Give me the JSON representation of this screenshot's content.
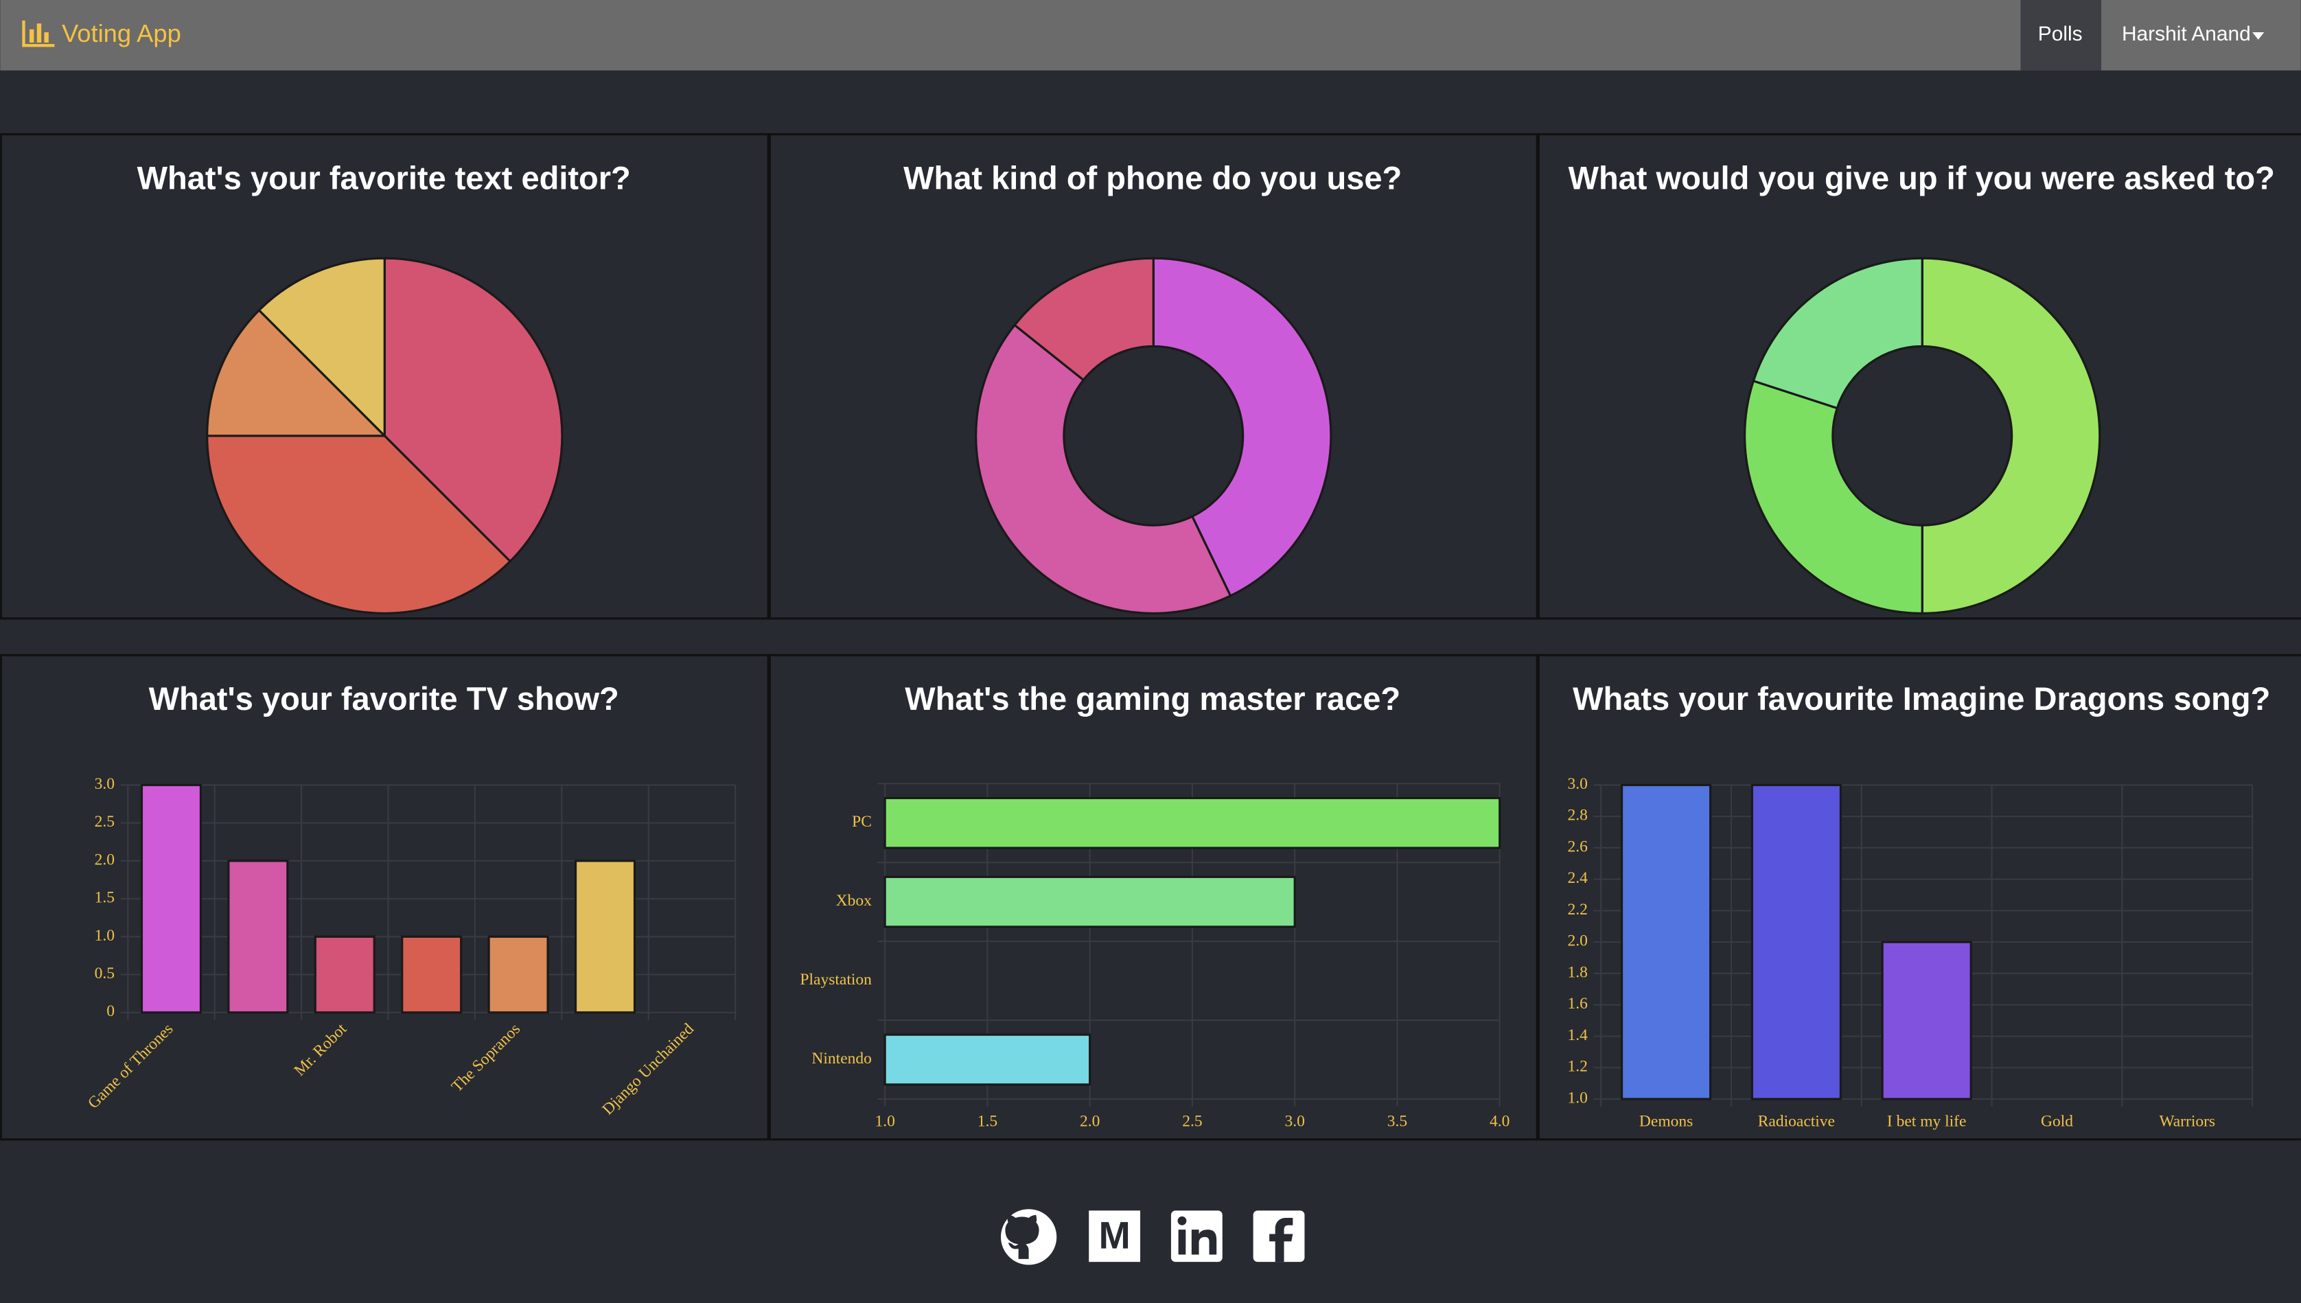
{
  "nav": {
    "brand": "Voting App",
    "items": [
      "Polls",
      "Harshit Anand"
    ]
  },
  "chart_data": [
    {
      "type": "pie",
      "title": "What's your favorite text editor?",
      "values": [
        3,
        3,
        1,
        1
      ],
      "colors": [
        "#d35470",
        "#d65f52",
        "#db8a5a",
        "#e0c060"
      ]
    },
    {
      "type": "pie",
      "donut": true,
      "title": "What kind of phone do you use?",
      "values": [
        3,
        3,
        1
      ],
      "colors": [
        "#cc5bd9",
        "#d35aa5",
        "#d35476"
      ]
    },
    {
      "type": "pie",
      "donut": true,
      "title": "What would you give up if you were asked to?",
      "values": [
        5,
        3,
        2
      ],
      "colors": [
        "#9be360",
        "#7ddf62",
        "#80e08e"
      ]
    },
    {
      "type": "bar",
      "title": "What's your favorite TV show?",
      "categories": [
        "Game of Thrones",
        null,
        "Mr. Robot",
        null,
        "The Sopranos",
        null,
        "Django Unchained"
      ],
      "values": [
        3,
        2,
        1,
        1,
        1,
        2,
        0
      ],
      "colors": [
        "#d05bd9",
        "#d359a6",
        "#d35476",
        "#d65f52",
        "#db8a5a",
        "#e0be5e",
        "#9ddf60"
      ],
      "ylim": [
        0,
        3
      ],
      "yticks": [
        0,
        0.5,
        {
          "value": 1,
          "label": "1.0"
        },
        1.5,
        {
          "value": 2,
          "label": "2.0"
        },
        2.5,
        {
          "value": 3,
          "label": "3.0"
        }
      ],
      "grid": true
    },
    {
      "type": "bar",
      "orientation": "horizontal",
      "title": "What's the gaming master race?",
      "categories": [
        "PC",
        "Xbox",
        "Playstation",
        "Nintendo"
      ],
      "values": [
        4,
        3,
        1,
        2
      ],
      "colors": [
        "#7ee066",
        "#80e08e",
        "#7fe0c0",
        "#77d9e3"
      ],
      "xlim": [
        1,
        4
      ],
      "xticks": [
        {
          "value": 1,
          "label": "1.0"
        },
        1.5,
        {
          "value": 2,
          "label": "2.0"
        },
        2.5,
        {
          "value": 3,
          "label": "3.0"
        },
        3.5,
        {
          "value": 4,
          "label": "4.0"
        }
      ],
      "grid": true
    },
    {
      "type": "bar",
      "title": "Whats your favourite Imagine Dragons song?",
      "categories": [
        "Demons",
        "Radioactive",
        "I bet my life",
        "Gold",
        "Warriors"
      ],
      "values": [
        3,
        3,
        2,
        1,
        1
      ],
      "colors": [
        "#5275e0",
        "#5a55dd",
        "#8152dd",
        "#b052dd",
        "#d052c0"
      ],
      "ylim": [
        1,
        3
      ],
      "yticks": [
        {
          "value": 1,
          "label": "1.0"
        },
        1.2,
        1.4,
        1.6,
        1.8,
        {
          "value": 2,
          "label": "2.0"
        },
        2.2,
        2.4,
        2.6,
        2.8,
        {
          "value": 3,
          "label": "3.0"
        }
      ],
      "grid": true
    }
  ]
}
